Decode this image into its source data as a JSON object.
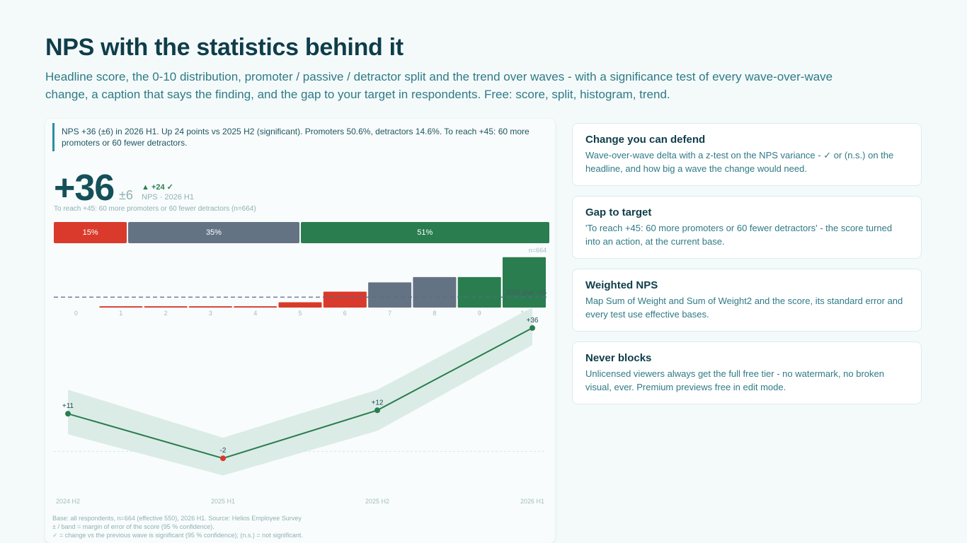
{
  "page": {
    "title": "NPS with the statistics behind it",
    "subtitle": "Headline score, the 0-10 distribution, promoter / passive / detractor split and the trend over waves - with a significance test of every wave-over-wave change, a caption that says the finding, and the gap to your target in respondents. Free: score, split, histogram, trend."
  },
  "visual": {
    "caption": "NPS +36 (±6) in 2026 H1. Up 24 points vs 2025 H2 (significant). Promoters 50.6%, detractors 14.6%. To reach +45: 60 more promoters or 60 fewer detractors.",
    "score": "+36",
    "moe": "±6",
    "delta": "▲ +24 ✓",
    "wave": "NPS · 2026 H1",
    "gap": "To reach +45: 60 more promoters or 60 fewer detractors (n=664)",
    "footnotes": [
      "Base: all respondents, n=664 (effective 550), 2026 H1. Source: Helios Employee Survey",
      "± / band = margin of error of the score (95 % confidence).",
      "✓ = change vs the previous wave is significant (95 % confidence); (n.s.) = not significant."
    ]
  },
  "colors": {
    "detractor": "#d93a2b",
    "passive": "#647384",
    "promoter": "#2a7d4f",
    "band": "#dbece6"
  },
  "chart_data": [
    {
      "type": "bar",
      "stacked": true,
      "series": [
        {
          "name": "",
          "value": 15,
          "label": "15%",
          "group": "detractor"
        },
        {
          "name": "",
          "value": 35,
          "label": "35%",
          "group": "passive"
        },
        {
          "name": "",
          "value": 51,
          "label": "51%",
          "group": "promoter"
        }
      ]
    },
    {
      "type": "bar",
      "note": "n=664",
      "categories": [
        "0",
        "1",
        "2",
        "3",
        "4",
        "5",
        "6",
        "7",
        "8",
        "9",
        "10"
      ],
      "values": [
        0,
        0.5,
        0.5,
        0.5,
        0.5,
        2,
        6,
        9.5,
        11.5,
        11.5,
        19
      ],
      "groups": [
        "detractor",
        "detractor",
        "detractor",
        "detractor",
        "detractor",
        "detractor",
        "detractor",
        "passive",
        "passive",
        "promoter",
        "promoter"
      ],
      "ylim": [
        0,
        20
      ]
    },
    {
      "type": "line",
      "categories": [
        "2024 H2",
        "2025 H1",
        "2025 H2",
        "2026 H1"
      ],
      "values": [
        11,
        -2,
        12,
        36
      ],
      "labels": [
        "+11",
        "-2",
        "+12",
        "+36"
      ],
      "band_low": [
        5,
        -7,
        6,
        31
      ],
      "band_high": [
        18,
        4,
        18,
        42
      ],
      "significant_drop": [
        false,
        true,
        false,
        false
      ],
      "goal": 45,
      "goal_label": "2026 goal +45",
      "ylim": [
        -5,
        47
      ]
    }
  ],
  "features": [
    {
      "title": "Change you can defend",
      "text": "Wave-over-wave delta with a z-test on the NPS variance - ✓ or (n.s.) on the headline, and how big a wave the change would need."
    },
    {
      "title": "Gap to target",
      "text": "'To reach +45: 60 more promoters or 60 fewer detractors' - the score turned into an action, at the current base."
    },
    {
      "title": "Weighted NPS",
      "text": "Map Sum of Weight and Sum of Weight2 and the score, its standard error and every test use effective bases."
    },
    {
      "title": "Never blocks",
      "text": "Unlicensed viewers always get the full free tier - no watermark, no broken visual, ever. Premium previews free in edit mode."
    }
  ]
}
